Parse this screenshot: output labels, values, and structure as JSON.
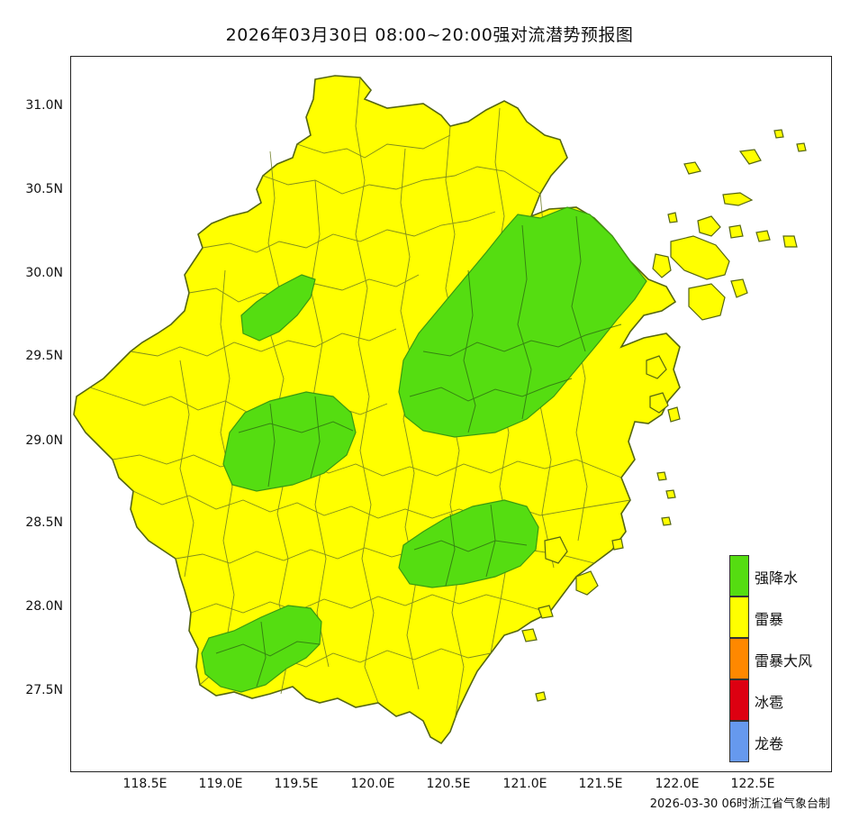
{
  "title": "2026年03月30日 08:00~20:00强对流潜势预报图",
  "axes": {
    "y_ticks": [
      "31.0N",
      "30.5N",
      "30.0N",
      "29.5N",
      "29.0N",
      "28.5N",
      "28.0N",
      "27.5N"
    ],
    "x_ticks": [
      "118.5E",
      "119.0E",
      "119.5E",
      "120.0E",
      "120.5E",
      "121.0E",
      "121.5E",
      "122.0E",
      "122.5E"
    ]
  },
  "legend": [
    {
      "label": "强降水",
      "color": "#55dd11"
    },
    {
      "label": "雷暴",
      "color": "#ffff00"
    },
    {
      "label": "雷暴大风",
      "color": "#ff8800"
    },
    {
      "label": "冰雹",
      "color": "#dd0011"
    },
    {
      "label": "龙卷",
      "color": "#6699ee"
    }
  ],
  "footer": "2026-03-30 06时浙江省气象台制",
  "colors": {
    "thunderstorm": "#ffff00",
    "heavy_rain": "#55dd11",
    "border": "#556611"
  }
}
